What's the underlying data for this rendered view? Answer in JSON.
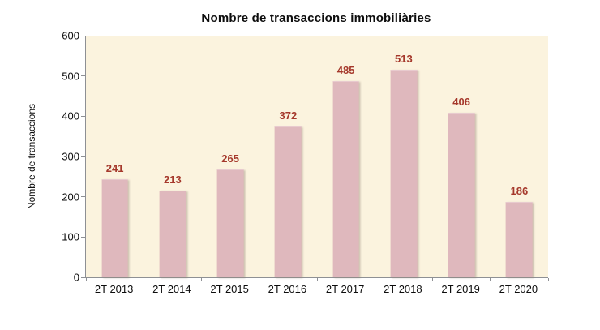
{
  "chart_data": {
    "type": "bar",
    "title": "Nombre de transaccions immobiliàries",
    "categories": [
      "2T 2013",
      "2T 2014",
      "2T 2015",
      "2T 2016",
      "2T 2017",
      "2T 2018",
      "2T 2019",
      "2T 2020"
    ],
    "values": [
      241,
      213,
      265,
      372,
      485,
      513,
      406,
      186
    ],
    "xlabel": "",
    "ylabel": "Nombre de transaccions",
    "ylim": [
      0,
      600
    ],
    "y_ticks": [
      0,
      100,
      200,
      300,
      400,
      500,
      600
    ],
    "grid": false,
    "legend": "none",
    "value_labels_shown": true,
    "colors": {
      "bar_fill": "#DFB8BD",
      "value_label": "#A5382B",
      "plot_background": "#FBF3DE",
      "axis": "#8E9094",
      "text": "#0D0D0D"
    }
  }
}
